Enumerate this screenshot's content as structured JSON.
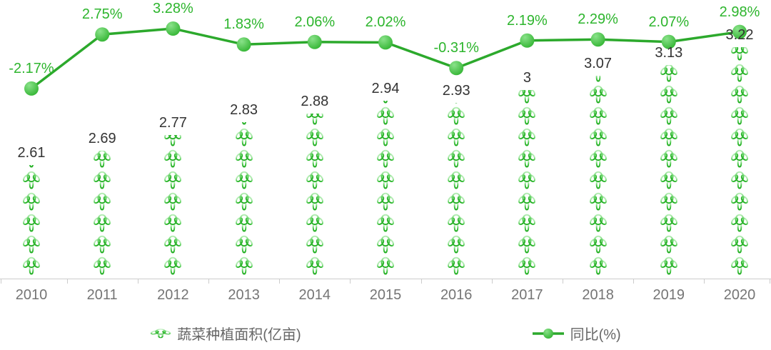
{
  "chart_data": {
    "type": "bar",
    "subtype": "pictorial-bar-with-line-overlay",
    "categories": [
      "2010",
      "2011",
      "2012",
      "2013",
      "2014",
      "2015",
      "2016",
      "2017",
      "2018",
      "2019",
      "2020"
    ],
    "series": [
      {
        "name": "蔬菜种植面积(亿亩)",
        "type": "pictorialBar",
        "symbol": "vegetable-icon",
        "values": [
          2.61,
          2.69,
          2.77,
          2.83,
          2.88,
          2.94,
          2.93,
          3.0,
          3.07,
          3.13,
          3.22
        ],
        "labels": [
          "2.61",
          "2.69",
          "2.77",
          "2.83",
          "2.88",
          "2.94",
          "2.93",
          "3",
          "3.07",
          "3.13",
          "3.22"
        ],
        "label_color": "#333333"
      },
      {
        "name": "同比(%)",
        "type": "line",
        "values": [
          -2.17,
          2.75,
          3.28,
          1.83,
          2.06,
          2.02,
          -0.31,
          2.19,
          2.29,
          2.07,
          2.98
        ],
        "labels": [
          "-2.17%",
          "2.75%",
          "3.28%",
          "1.83%",
          "2.06%",
          "2.02%",
          "-0.31%",
          "2.19%",
          "2.29%",
          "2.07%",
          "2.98%"
        ],
        "label_color": "#2db52d"
      }
    ],
    "legend_position": "bottom",
    "grid": false,
    "xlabel": "",
    "ylabel": "",
    "colors": {
      "line": "#2ca92c",
      "dot_light": "#84e084",
      "dot_dark": "#2cb12c",
      "icon_light": "#b9eeb9",
      "icon_mid": "#53cc53",
      "icon_dark": "#1cab1c",
      "axis": "#cccccc",
      "year_label": "#757575",
      "value_label": "#333333",
      "pct_label": "#2db52d",
      "legend_text": "#666666"
    }
  },
  "legend": {
    "items": [
      {
        "label": "蔬菜种植面积(亿亩)",
        "icon": "vegetable-icon"
      },
      {
        "label": "同比(%)",
        "icon": "line-dot-icon"
      }
    ]
  }
}
